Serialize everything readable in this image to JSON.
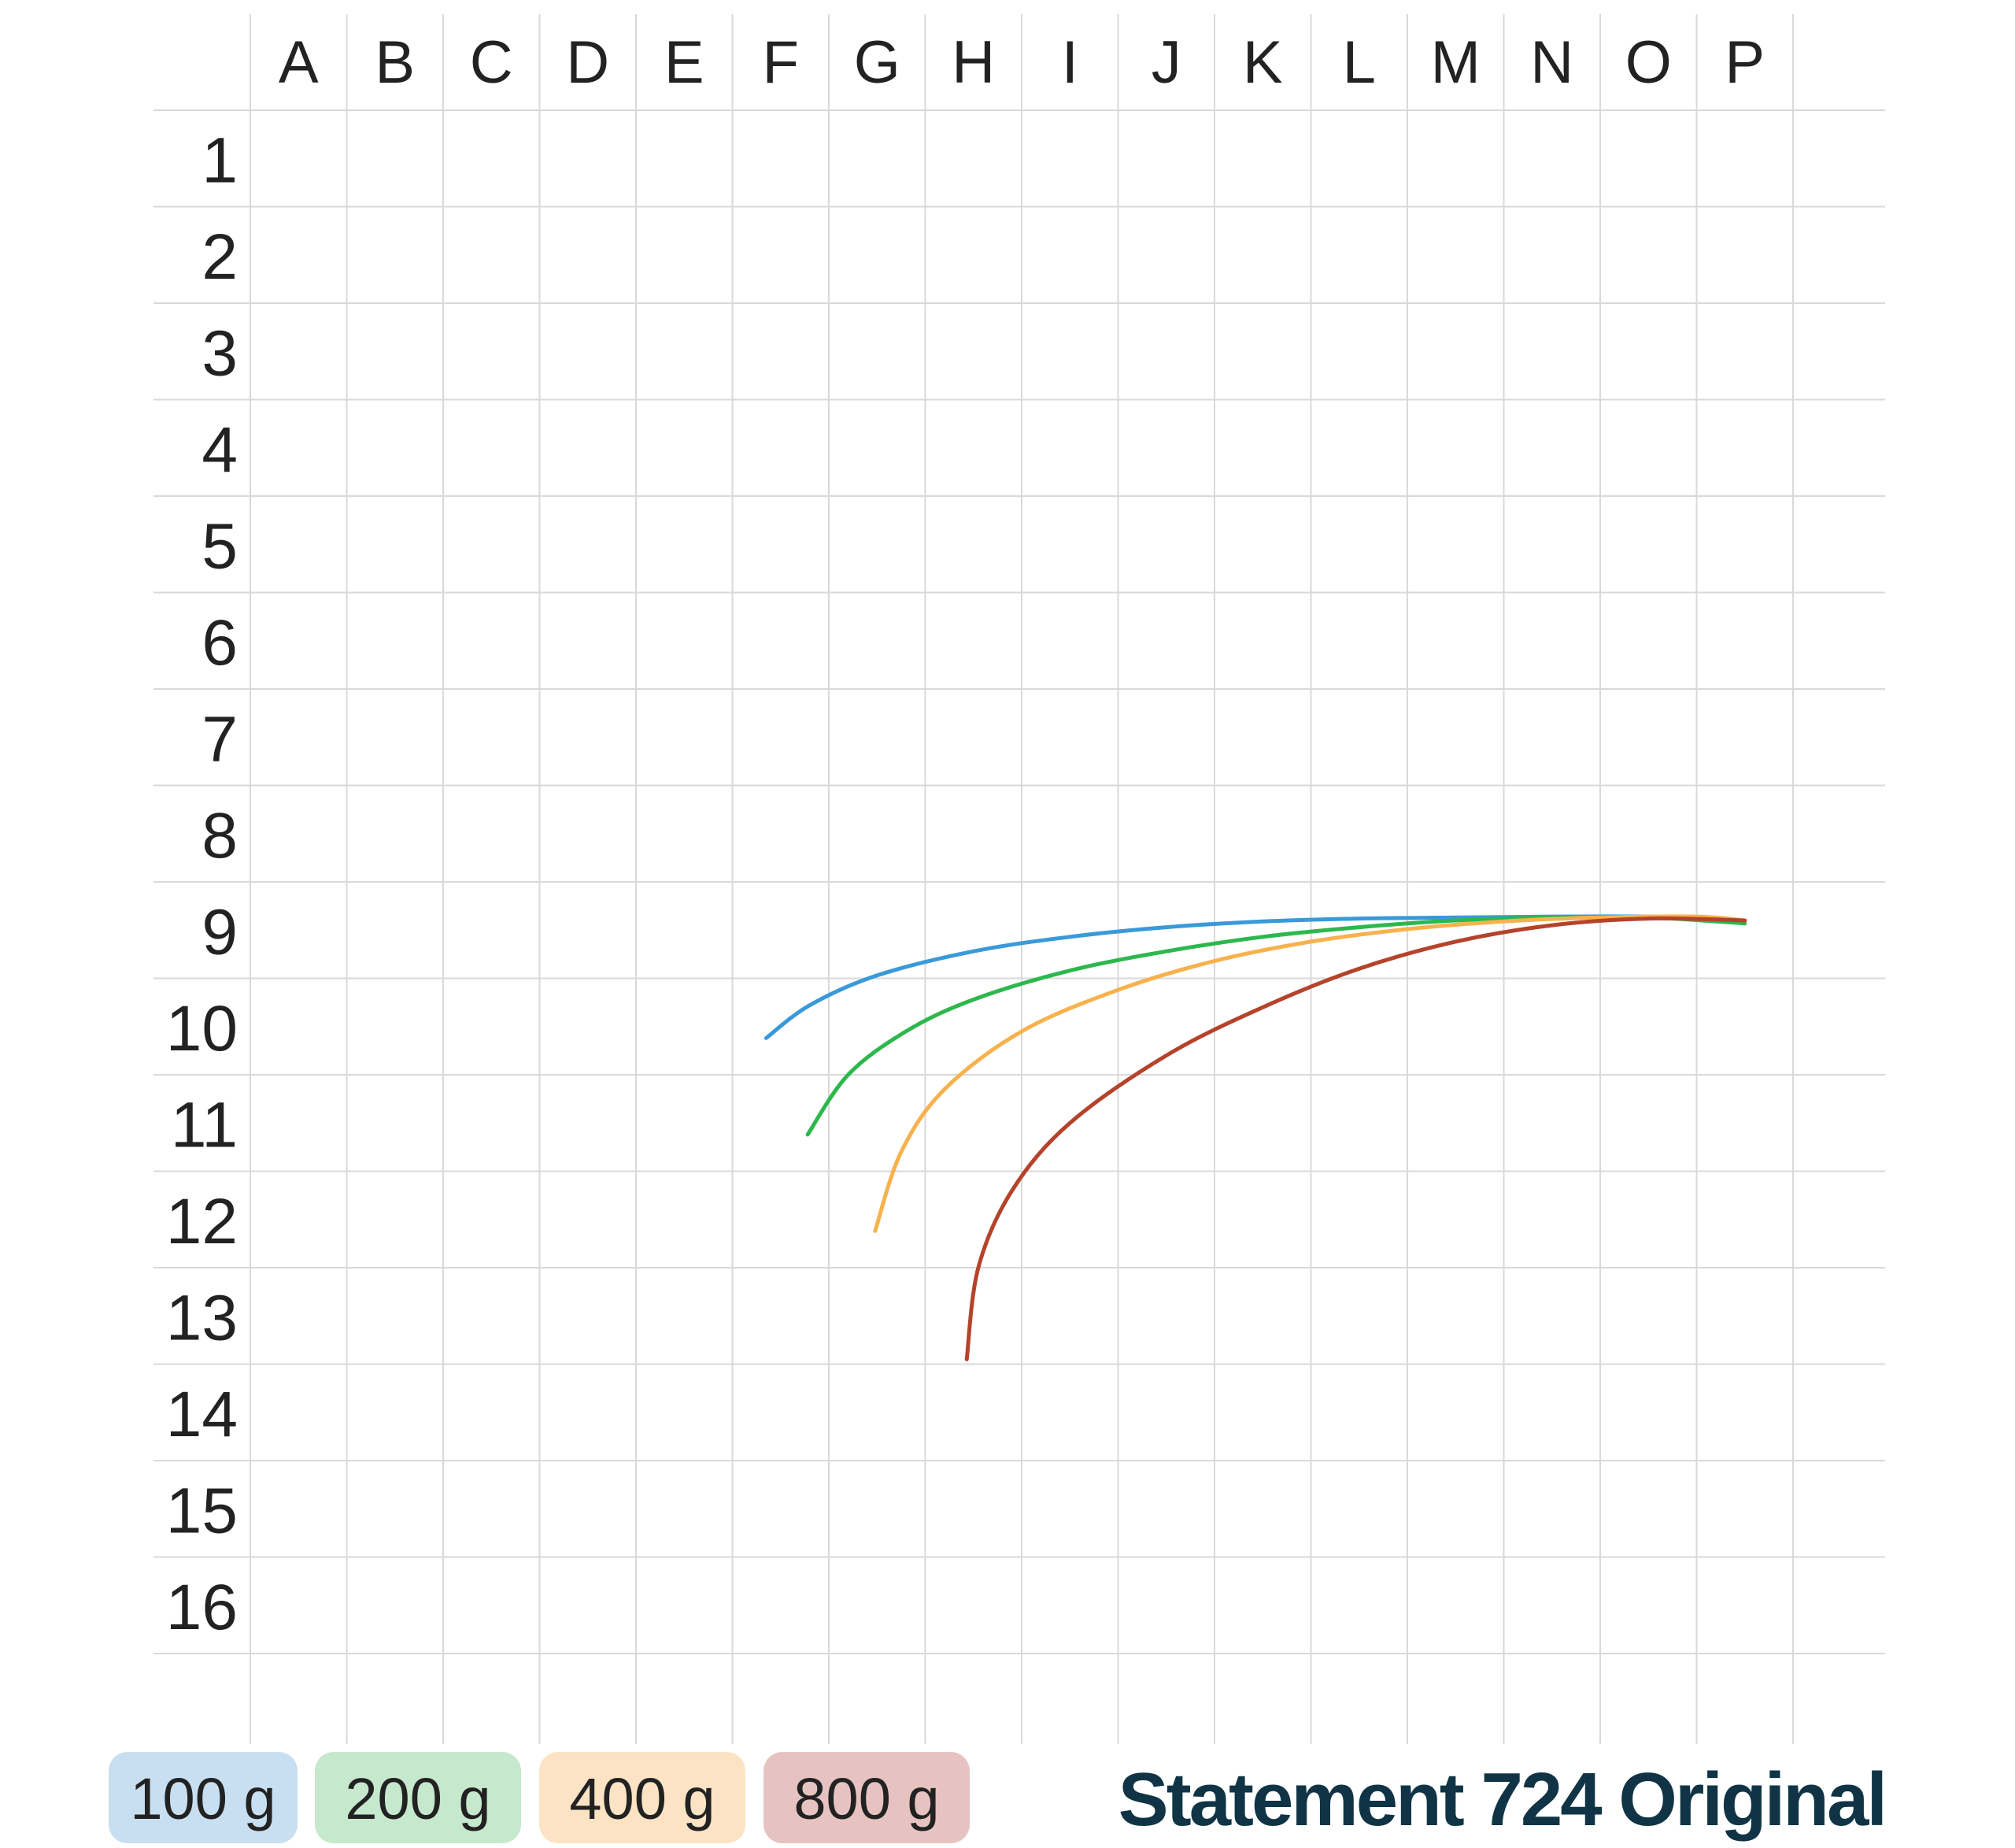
{
  "chart_data": {
    "type": "line",
    "columns": [
      "A",
      "B",
      "C",
      "D",
      "E",
      "F",
      "G",
      "H",
      "I",
      "J",
      "K",
      "L",
      "M",
      "N",
      "O",
      "P"
    ],
    "rows": [
      "1",
      "2",
      "3",
      "4",
      "5",
      "6",
      "7",
      "8",
      "9",
      "10",
      "11",
      "12",
      "13",
      "14",
      "15",
      "16"
    ],
    "grid": true,
    "series": [
      {
        "name": "100 g",
        "color": "#3a9ad9",
        "legend_bg": "#c7dff0",
        "points": [
          [
            5.35,
            9.62
          ],
          [
            5.8,
            9.28
          ],
          [
            6.5,
            8.97
          ],
          [
            7.5,
            8.72
          ],
          [
            8.5,
            8.57
          ],
          [
            9.5,
            8.47
          ],
          [
            10.5,
            8.41
          ],
          [
            11.5,
            8.38
          ],
          [
            12.5,
            8.37
          ],
          [
            13.5,
            8.36
          ],
          [
            14.5,
            8.36
          ],
          [
            15.3,
            8.38
          ]
        ]
      },
      {
        "name": "200 g",
        "color": "#2db84d",
        "legend_bg": "#c6e8cd",
        "points": [
          [
            5.78,
            10.62
          ],
          [
            6.2,
            10.0
          ],
          [
            6.8,
            9.55
          ],
          [
            7.5,
            9.22
          ],
          [
            8.5,
            8.92
          ],
          [
            9.5,
            8.72
          ],
          [
            10.5,
            8.57
          ],
          [
            11.5,
            8.47
          ],
          [
            12.5,
            8.4
          ],
          [
            13.5,
            8.37
          ],
          [
            14.5,
            8.37
          ],
          [
            15.5,
            8.43
          ]
        ]
      },
      {
        "name": "400 g",
        "color": "#f7b24d",
        "legend_bg": "#fbe3c4",
        "points": [
          [
            6.48,
            11.62
          ],
          [
            6.75,
            10.8
          ],
          [
            7.2,
            10.15
          ],
          [
            8.0,
            9.55
          ],
          [
            9.0,
            9.12
          ],
          [
            10.0,
            8.82
          ],
          [
            11.0,
            8.62
          ],
          [
            12.0,
            8.49
          ],
          [
            13.0,
            8.41
          ],
          [
            14.0,
            8.37
          ],
          [
            15.0,
            8.36
          ],
          [
            15.5,
            8.4
          ]
        ]
      },
      {
        "name": "800 g",
        "color": "#b5432b",
        "legend_bg": "#e6c3c1",
        "points": [
          [
            7.43,
            12.95
          ],
          [
            7.55,
            12.0
          ],
          [
            7.9,
            11.2
          ],
          [
            8.5,
            10.5
          ],
          [
            9.5,
            9.8
          ],
          [
            10.5,
            9.3
          ],
          [
            11.5,
            8.9
          ],
          [
            12.5,
            8.62
          ],
          [
            13.5,
            8.45
          ],
          [
            14.5,
            8.38
          ],
          [
            15.5,
            8.4
          ]
        ]
      }
    ]
  },
  "legend": [
    {
      "label": "100 g",
      "bg": "#c7dff0"
    },
    {
      "label": "200 g",
      "bg": "#c6e8cd"
    },
    {
      "label": "400 g",
      "bg": "#fbe3c4"
    },
    {
      "label": "800 g",
      "bg": "#e6c3c1"
    }
  ],
  "brand": {
    "text": "Statement 724 Original",
    "color": "#103445"
  }
}
